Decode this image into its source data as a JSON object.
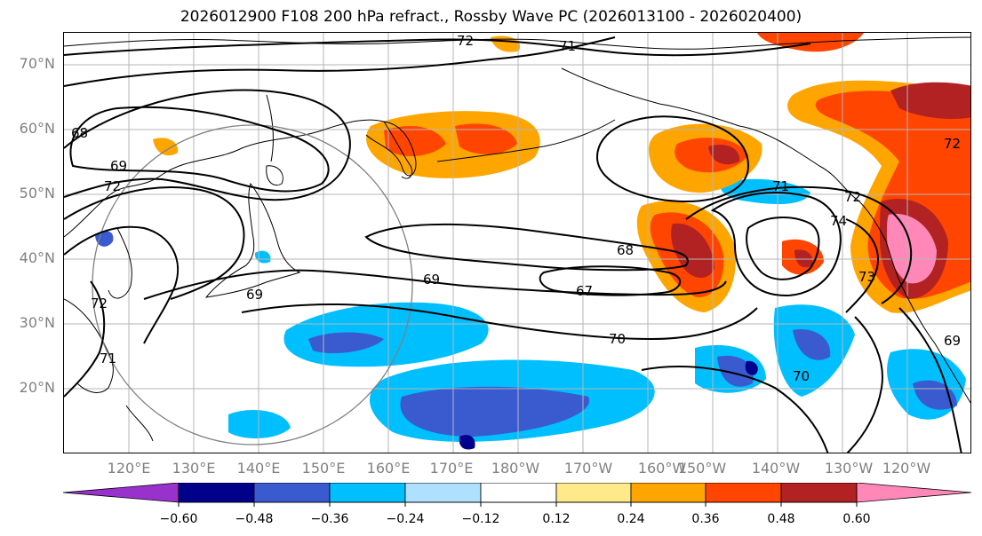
{
  "title": "2026012900 F108 200 hPa refract., Rossby Wave PC (2026013100 - 2026020400)",
  "lat_labels": [
    "70°N",
    "60°N",
    "50°N",
    "40°N",
    "30°N",
    "20°N"
  ],
  "lon_labels": [
    "120°E",
    "130°E",
    "140°E",
    "150°E",
    "160°E",
    "170°E",
    "180°W",
    "170°W",
    "160°W",
    "150°W",
    "140°W",
    "130°W",
    "120°W"
  ],
  "contour_labels": [
    "72",
    "71",
    "68",
    "69",
    "69",
    "68",
    "67",
    "70",
    "71",
    "74",
    "72",
    "73",
    "70",
    "69",
    "72",
    "72",
    "71",
    "72",
    "69"
  ],
  "colorbar": {
    "ticks": [
      "−0.60",
      "−0.48",
      "−0.36",
      "−0.24",
      "−0.12",
      "0.12",
      "0.24",
      "0.36",
      "0.48",
      "0.60"
    ],
    "colors": [
      "#9932cc",
      "#00008b",
      "#3a5bcf",
      "#00bfff",
      "#b0e0ff",
      "#ffffff",
      "#ffe98a",
      "#ffa500",
      "#ff4500",
      "#b22222",
      "#ff88b8"
    ]
  }
}
